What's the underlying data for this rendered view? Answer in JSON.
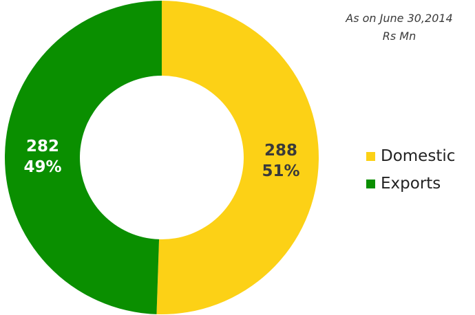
{
  "header": {
    "as_on": "As on  June 30,2014",
    "unit": "Rs Mn"
  },
  "chart_data": {
    "type": "pie",
    "donut": true,
    "categories": [
      "Domestic",
      "Exports"
    ],
    "values": [
      288,
      282
    ],
    "percent_labels": [
      "51%",
      "49%"
    ],
    "value_labels": [
      "288",
      "282"
    ],
    "colors": [
      "#FCD116",
      "#0A8F00"
    ],
    "label_colors": [
      "#3a3a3a",
      "#ffffff"
    ],
    "legend": "right"
  },
  "legend": {
    "items": [
      {
        "label": "Domestic",
        "color": "#FCD116"
      },
      {
        "label": "Exports",
        "color": "#0A8F00"
      }
    ]
  }
}
